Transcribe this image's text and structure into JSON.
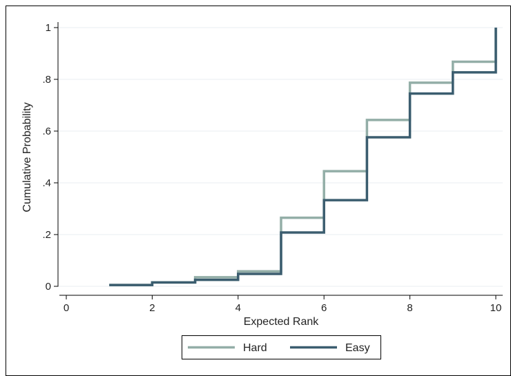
{
  "chart_data": {
    "type": "line",
    "step": true,
    "xlabel": "Expected Rank",
    "ylabel": "Cumulative Probability",
    "xlim": [
      0,
      10
    ],
    "ylim": [
      0,
      1
    ],
    "x_ticks": [
      0,
      2,
      4,
      6,
      8,
      10
    ],
    "x_tick_labels": [
      "0",
      "2",
      "4",
      "6",
      "8",
      "10"
    ],
    "y_ticks": [
      0,
      0.2,
      0.4,
      0.6,
      0.8,
      1
    ],
    "y_tick_labels": [
      "0",
      ".2",
      ".4",
      ".6",
      ".8",
      "1"
    ],
    "grid": true,
    "legend_position": "bottom",
    "series": [
      {
        "name": "Hard",
        "color": "#93aea7",
        "x": [
          1,
          2,
          3,
          4,
          5,
          6,
          7,
          8,
          9,
          10
        ],
        "y": [
          0.005,
          0.015,
          0.035,
          0.058,
          0.265,
          0.445,
          0.643,
          0.787,
          0.868,
          1.0
        ]
      },
      {
        "name": "Easy",
        "color": "#3b5d6f",
        "x": [
          1,
          2,
          3,
          4,
          5,
          6,
          7,
          8,
          9,
          10
        ],
        "y": [
          0.005,
          0.015,
          0.025,
          0.048,
          0.208,
          0.333,
          0.576,
          0.745,
          0.827,
          1.0
        ]
      }
    ]
  }
}
